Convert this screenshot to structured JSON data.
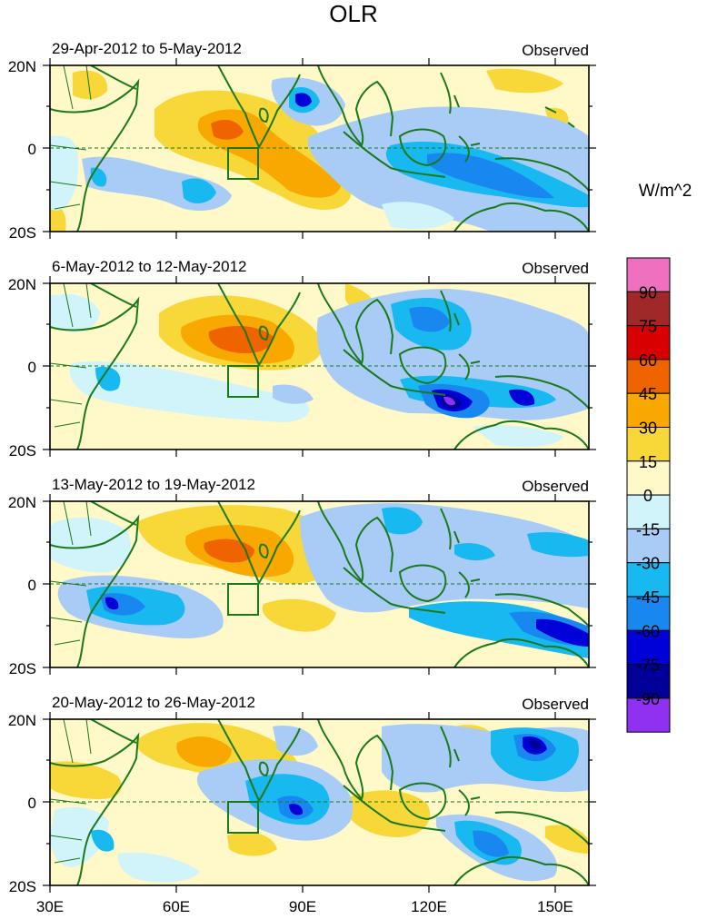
{
  "title": "OLR",
  "units_label": "W/m^2",
  "panels": [
    {
      "period": "29-Apr-2012 to 5-May-2012",
      "tag": "Observed"
    },
    {
      "period": "6-May-2012 to 12-May-2012",
      "tag": "Observed"
    },
    {
      "period": "13-May-2012 to 19-May-2012",
      "tag": "Observed"
    },
    {
      "period": "20-May-2012 to 26-May-2012",
      "tag": "Observed"
    }
  ],
  "lat_labels": [
    "20N",
    "0",
    "20S"
  ],
  "lon_labels": [
    "30E",
    "60E",
    "90E",
    "120E",
    "150E"
  ],
  "colorbar": {
    "labels": [
      "90",
      "75",
      "60",
      "45",
      "30",
      "15",
      "0",
      "-15",
      "-30",
      "-45",
      "-60",
      "-75",
      "-90"
    ],
    "colors": [
      "#f070c0",
      "#a02828",
      "#d80000",
      "#f06400",
      "#f8a800",
      "#f8d838",
      "#fff8c8",
      "#d0f4fa",
      "#a8ccf6",
      "#18b8f0",
      "#1888f0",
      "#0000d8",
      "#000098",
      "#9030f0"
    ]
  },
  "palette": {
    "coast": "#1a7a1a",
    "equator": "#1a7a1a",
    "background_field": "#fff8c8"
  }
}
